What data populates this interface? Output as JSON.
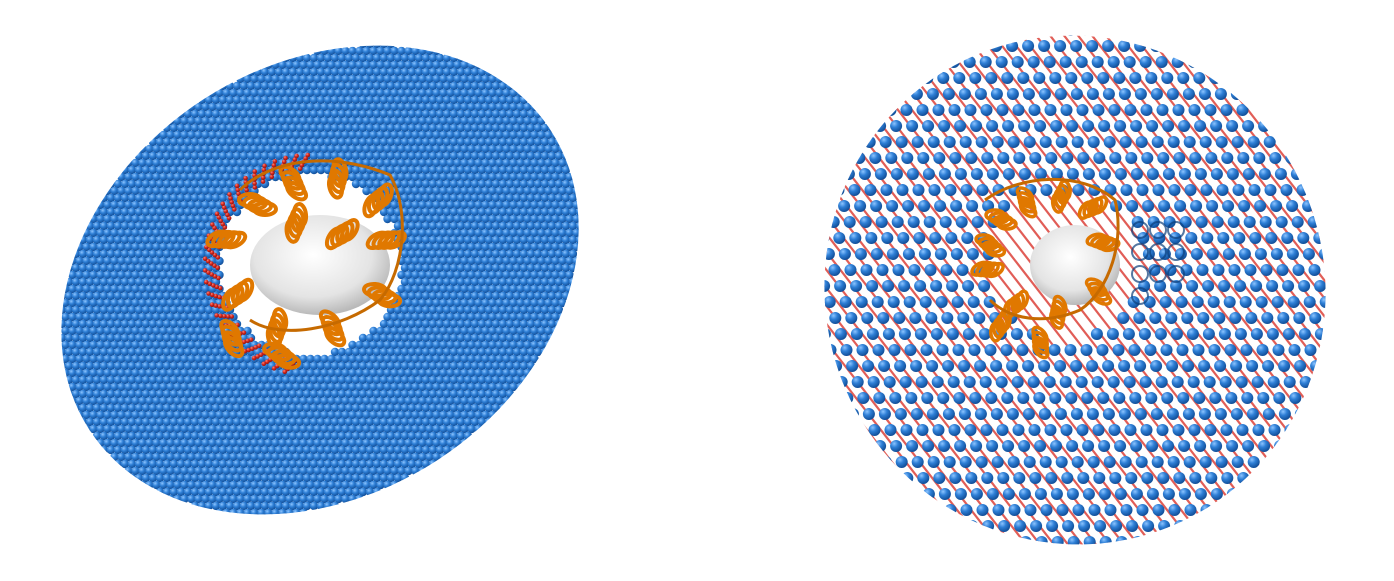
{
  "figure": {
    "panels": [
      {
        "id": "left",
        "subject": "oblique-disc",
        "colors": {
          "bead": "#1f6fcb",
          "bead_light": "#5ba3ee",
          "inner_bead": "#d7281f",
          "protein": "#e07800",
          "protein_dark": "#9a4b00",
          "core": "#e9e9e9"
        }
      },
      {
        "id": "right",
        "subject": "round-disc-lattice",
        "colors": {
          "bead": "#1f6fcb",
          "bead_light": "#5ba3ee",
          "inner_bead": "#d7281f",
          "protein": "#e07800",
          "protein_dark": "#9a4b00",
          "core": "#e9e9e9"
        }
      }
    ]
  }
}
